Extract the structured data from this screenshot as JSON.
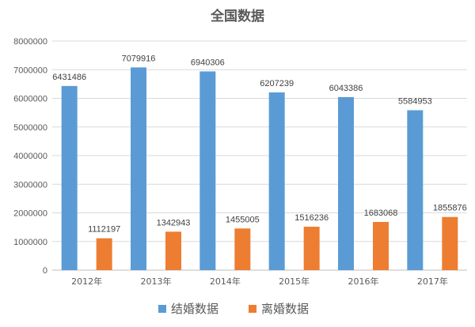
{
  "chart_data": {
    "type": "bar",
    "title": "全国数据",
    "xlabel": "",
    "ylabel": "",
    "categories": [
      "2012年",
      "2013年",
      "2014年",
      "2015年",
      "2016年",
      "2017年"
    ],
    "series": [
      {
        "name": "结婚数据",
        "color": "#5B9BD5",
        "values": [
          6431486,
          7079916,
          6940306,
          6207239,
          6043386,
          5584953
        ]
      },
      {
        "name": "离婚数据",
        "color": "#ED7D31",
        "values": [
          1112197,
          1342943,
          1455005,
          1516236,
          1683068,
          1855876
        ]
      }
    ],
    "ylim": [
      0,
      8000000
    ],
    "yticks": [
      0,
      1000000,
      2000000,
      3000000,
      4000000,
      5000000,
      6000000,
      7000000,
      8000000
    ],
    "grid": true,
    "legend": "bottom"
  }
}
